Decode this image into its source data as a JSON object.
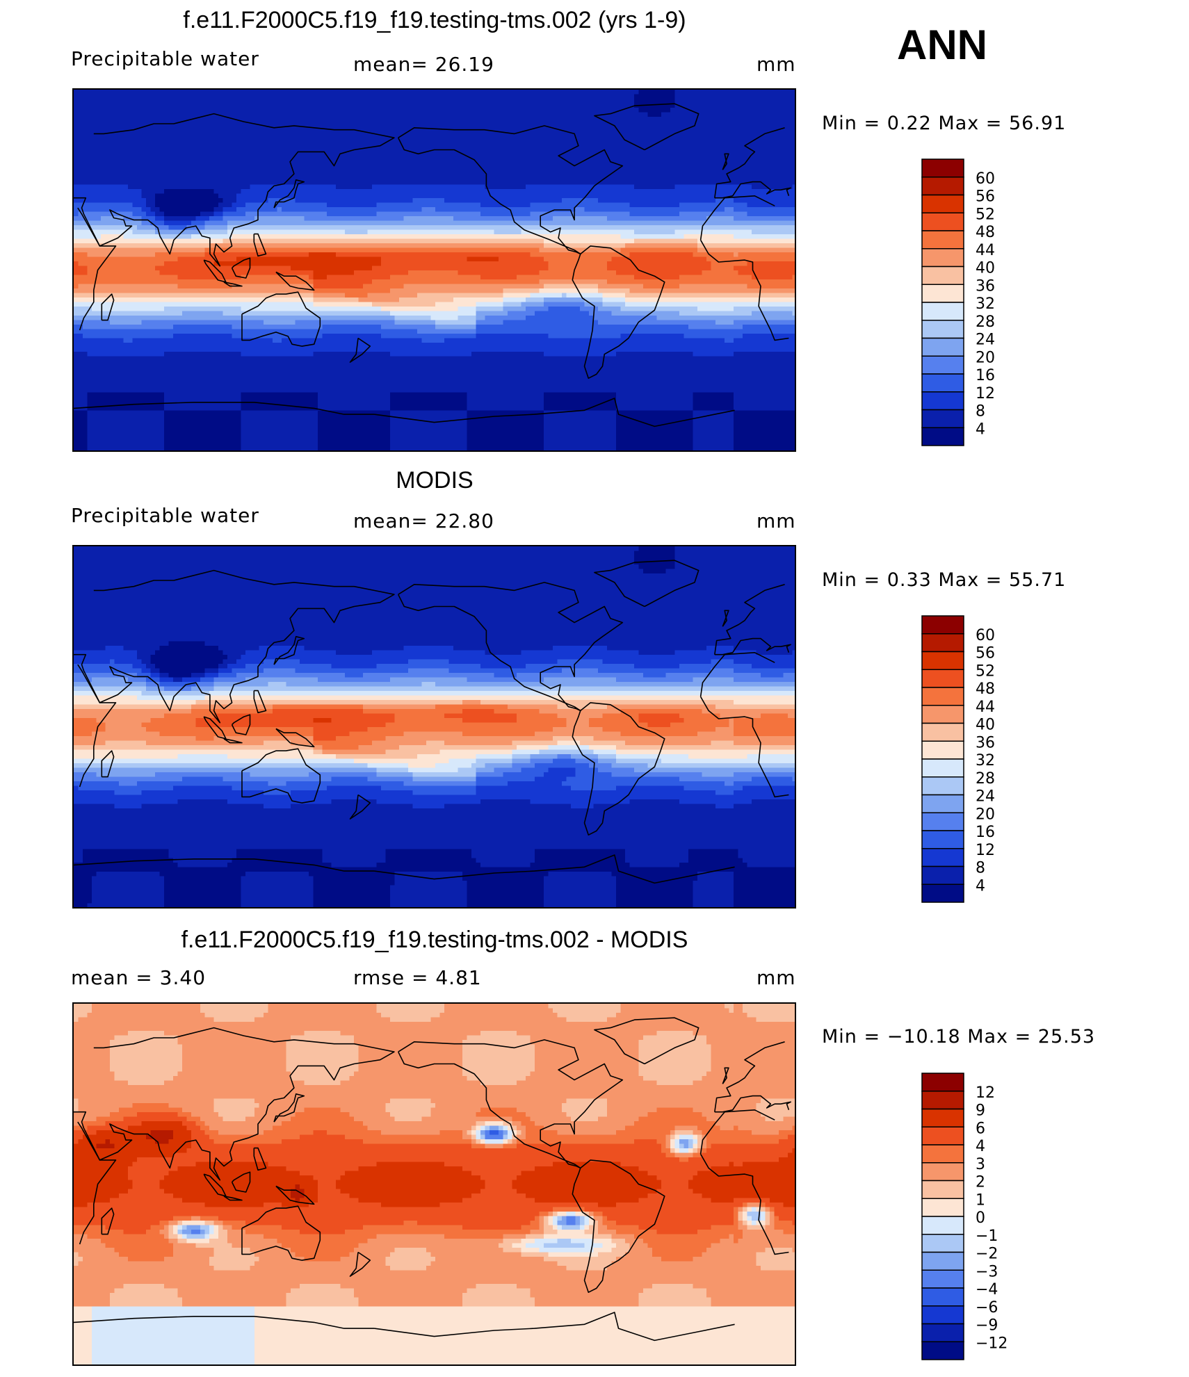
{
  "season": "ANN",
  "panels": [
    {
      "id": "model",
      "title": "f.e11.F2000C5.f19_f19.testing-tms.002 (yrs 1-9)",
      "left_label": "Precipitable  water",
      "center_label": "mean=  26.19",
      "units": "mm",
      "minmax": "Min  =    0.22  Max  =   56.91"
    },
    {
      "id": "obs",
      "title": "MODIS",
      "left_label": "Precipitable  water",
      "center_label": "mean=  22.80",
      "units": "mm",
      "minmax": "Min  =    0.33  Max  =   55.71"
    },
    {
      "id": "diff",
      "title": "f.e11.F2000C5.f19_f19.testing-tms.002 - MODIS",
      "left_label": "mean  =     3.40",
      "center_label": "rmse  =     4.81",
      "units": "mm",
      "minmax": "Min  = −10.18  Max  =   25.53"
    }
  ],
  "chart_data": [
    {
      "type": "heatmap",
      "title": "f.e11.F2000C5.f19_f19.testing-tms.002 (yrs 1-9)",
      "variable": "Precipitable water",
      "units": "mm",
      "mean": 26.19,
      "min": 0.22,
      "max": 56.91,
      "colorbar_levels": [
        "60",
        "56",
        "52",
        "48",
        "44",
        "40",
        "36",
        "32",
        "28",
        "24",
        "20",
        "16",
        "12",
        "8",
        "4"
      ],
      "colors": [
        "#8c0000",
        "#b51a00",
        "#d93300",
        "#ed5020",
        "#f4733d",
        "#f6966b",
        "#f9c1a2",
        "#fde5d4",
        "#d7e8fb",
        "#abc8f5",
        "#7ea4f0",
        "#5680ee",
        "#2f5ce4",
        "#1538d2",
        "#0a20ac",
        "#000c86"
      ]
    },
    {
      "type": "heatmap",
      "title": "MODIS",
      "variable": "Precipitable water",
      "units": "mm",
      "mean": 22.8,
      "min": 0.33,
      "max": 55.71,
      "colorbar_levels": [
        "60",
        "56",
        "52",
        "48",
        "44",
        "40",
        "36",
        "32",
        "28",
        "24",
        "20",
        "16",
        "12",
        "8",
        "4"
      ],
      "colors": [
        "#8c0000",
        "#b51a00",
        "#d93300",
        "#ed5020",
        "#f4733d",
        "#f6966b",
        "#f9c1a2",
        "#fde5d4",
        "#d7e8fb",
        "#abc8f5",
        "#7ea4f0",
        "#5680ee",
        "#2f5ce4",
        "#1538d2",
        "#0a20ac",
        "#000c86"
      ]
    },
    {
      "type": "heatmap",
      "title": "f.e11.F2000C5.f19_f19.testing-tms.002 - MODIS",
      "units": "mm",
      "mean": 3.4,
      "rmse": 4.81,
      "min": -10.18,
      "max": 25.53,
      "colorbar_levels": [
        "12",
        "9",
        "6",
        "4",
        "3",
        "2",
        "1",
        "0",
        "−1",
        "−2",
        "−3",
        "−4",
        "−6",
        "−9",
        "−12"
      ],
      "colors": [
        "#8c0000",
        "#b51a00",
        "#d93300",
        "#ed5020",
        "#f4733d",
        "#f6966b",
        "#f9c1a2",
        "#fde5d4",
        "#d7e8fb",
        "#abc8f5",
        "#7ea4f0",
        "#5680ee",
        "#2f5ce4",
        "#1538d2",
        "#0a20ac",
        "#000c86"
      ]
    }
  ]
}
